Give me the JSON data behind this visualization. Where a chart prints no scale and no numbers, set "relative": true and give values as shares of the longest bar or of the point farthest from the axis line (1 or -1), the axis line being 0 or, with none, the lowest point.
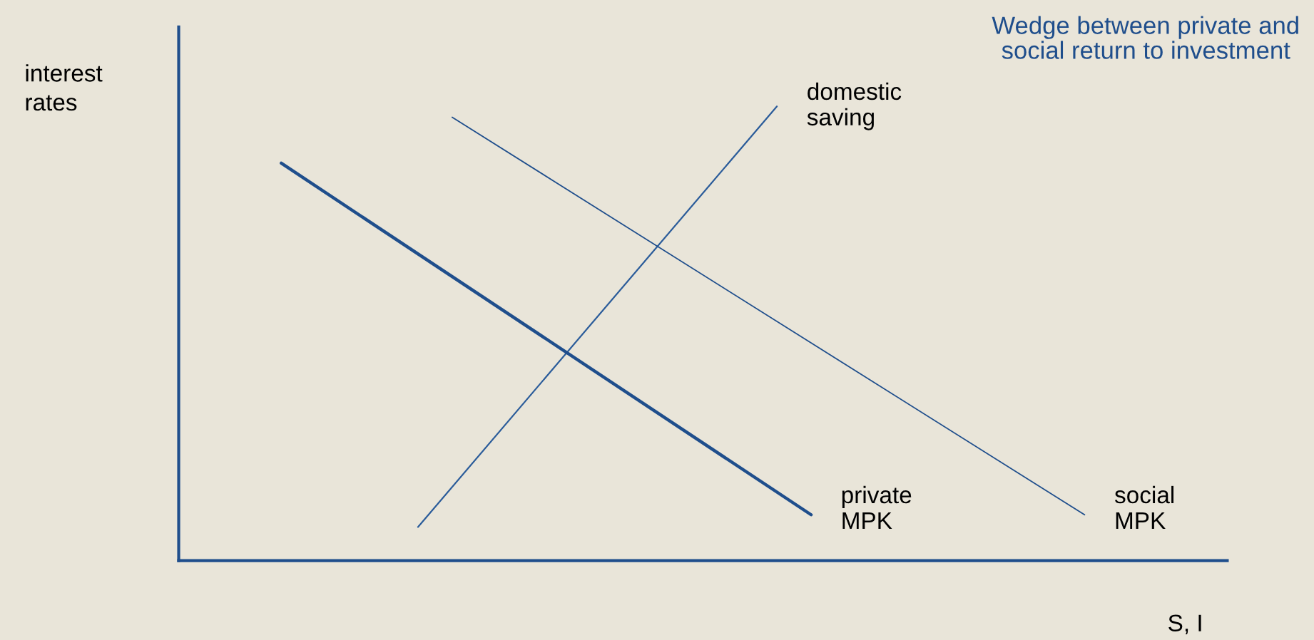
{
  "chart_data": {
    "type": "line",
    "relative": true,
    "title": "Wedge between private and social return to investment",
    "ylabel": "interest rates",
    "xlabel": "S, I",
    "categories": [
      null,
      null,
      null,
      null,
      null,
      null,
      null,
      null,
      null,
      null,
      null,
      null,
      null,
      null,
      null,
      null,
      null,
      null,
      null,
      null,
      null,
      null,
      null,
      null,
      null,
      null,
      null,
      null,
      null,
      null,
      null,
      null,
      null,
      null,
      null,
      null,
      null,
      null,
      null,
      null,
      null,
      null,
      null,
      null,
      null,
      null,
      null,
      null,
      null,
      null,
      null,
      null,
      null,
      null,
      null,
      null,
      null,
      null,
      null,
      null,
      null,
      null
    ],
    "series": [
      {
        "name": "domestic saving",
        "color": "#2b5c9a",
        "values": [
          null,
          null,
          null,
          null,
          null,
          null,
          null,
          null,
          null,
          null,
          null,
          null,
          null,
          null,
          0.074,
          null,
          null,
          null,
          null,
          null,
          null,
          null,
          null,
          null,
          null,
          null,
          null,
          null,
          null,
          null,
          null,
          null,
          null,
          null,
          null,
          1,
          null,
          null,
          null,
          null,
          null,
          null,
          null,
          null,
          null,
          null,
          null,
          null,
          null,
          null,
          null,
          null,
          null,
          null,
          null,
          null,
          null,
          null,
          null,
          null,
          null,
          null
        ]
      },
      {
        "name": "private MPK",
        "color": "#1f4e8c",
        "values": [
          null,
          null,
          null,
          null,
          null,
          null,
          0.875,
          null,
          null,
          null,
          null,
          null,
          null,
          null,
          null,
          null,
          null,
          null,
          null,
          null,
          null,
          null,
          null,
          null,
          null,
          null,
          null,
          null,
          null,
          null,
          null,
          null,
          null,
          null,
          null,
          null,
          null,
          0.101,
          null,
          null,
          null,
          null,
          null,
          null,
          null,
          null,
          null,
          null,
          null,
          null,
          null,
          null,
          null,
          null,
          null,
          null,
          null,
          null,
          null,
          null,
          null,
          null
        ]
      },
      {
        "name": "social MPK",
        "color": "#1f4e8c",
        "values": [
          null,
          null,
          null,
          null,
          null,
          null,
          null,
          null,
          null,
          null,
          null,
          null,
          null,
          null,
          null,
          null,
          0.976,
          null,
          null,
          null,
          null,
          null,
          null,
          null,
          null,
          null,
          null,
          null,
          null,
          null,
          null,
          null,
          null,
          null,
          null,
          null,
          null,
          null,
          null,
          null,
          null,
          null,
          null,
          null,
          null,
          null,
          null,
          null,
          null,
          null,
          null,
          null,
          null,
          0.101,
          null,
          null,
          null,
          null,
          null,
          null,
          null,
          null
        ]
      }
    ],
    "grid": false,
    "legend": false,
    "marker": "none",
    "line_style": "solid"
  }
}
